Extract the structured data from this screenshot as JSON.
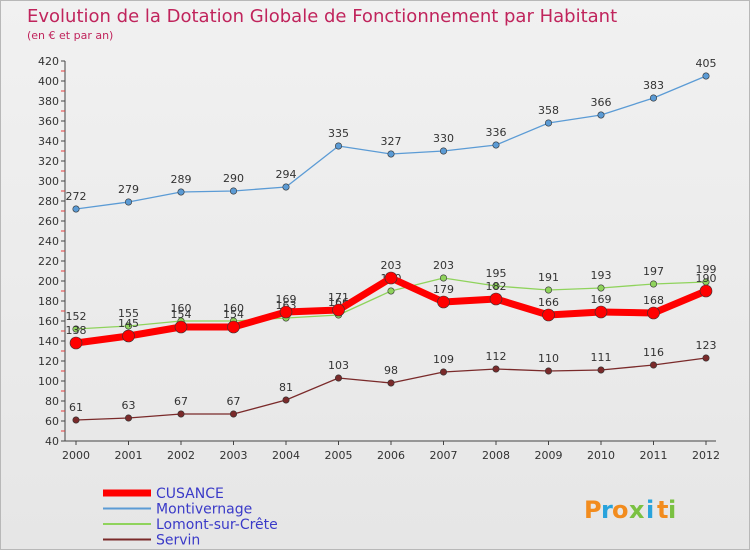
{
  "chart_data": {
    "type": "line",
    "title": "Evolution de la Dotation Globale de Fonctionnement par Habitant",
    "subtitle": "(en € et par an)",
    "x": [
      "2000",
      "2001",
      "2002",
      "2003",
      "2004",
      "2005",
      "2006",
      "2007",
      "2008",
      "2009",
      "2010",
      "2011",
      "2012"
    ],
    "ylim": [
      40,
      420
    ],
    "yticks": [
      40,
      60,
      80,
      100,
      120,
      140,
      160,
      180,
      200,
      220,
      240,
      260,
      280,
      300,
      320,
      340,
      360,
      380,
      400,
      420
    ],
    "grid": false,
    "legend_position": "bottom-left",
    "series": [
      {
        "name": "Montivernage",
        "color": "#5b9bd5",
        "values": [
          272,
          279,
          289,
          290,
          294,
          335,
          327,
          330,
          336,
          358,
          366,
          383,
          405
        ]
      },
      {
        "name": "Lomont-sur-Crête",
        "color": "#8fd35c",
        "values": [
          152,
          155,
          160,
          160,
          163,
          166,
          190,
          203,
          195,
          191,
          193,
          197,
          199
        ]
      },
      {
        "name": "Servin",
        "color": "#7a2a2a",
        "values": [
          61,
          63,
          67,
          67,
          81,
          103,
          98,
          109,
          112,
          110,
          111,
          116,
          123
        ]
      },
      {
        "name": "CUSANCE",
        "color": "#ff0000",
        "values": [
          138,
          145,
          154,
          154,
          169,
          171,
          203,
          179,
          182,
          166,
          169,
          168,
          190
        ]
      }
    ],
    "legend_order": [
      "CUSANCE",
      "Montivernage",
      "Lomont-sur-Crête",
      "Servin"
    ]
  },
  "brand": {
    "text": "Proxiti",
    "letters": [
      "P",
      "r",
      "o",
      "x",
      "i",
      "t",
      "i"
    ]
  },
  "colors": {
    "title": "#c0245c",
    "axis": "#333333",
    "legend_text": "#3a3ac8"
  }
}
